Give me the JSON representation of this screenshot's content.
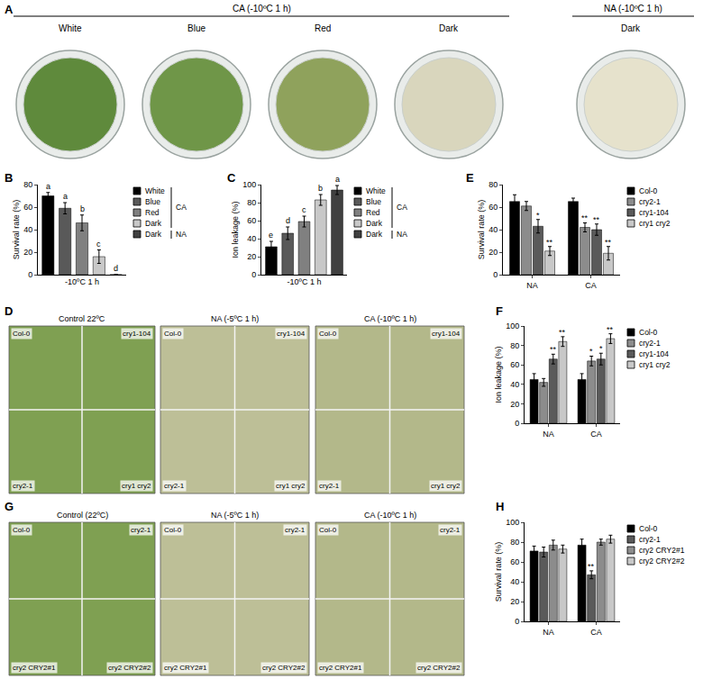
{
  "panels": {
    "A": {
      "label": "A",
      "headers": [
        {
          "text": "CA (-10ºC 1 h)",
          "plates": [
            "White",
            "Blue",
            "Red",
            "Dark"
          ]
        },
        {
          "text": "NA (-10ºC 1 h)",
          "plates": [
            "Dark"
          ]
        }
      ]
    },
    "D": {
      "label": "D",
      "conditions": [
        "Control 22ºC",
        "NA (-5ºC 1 h)",
        "CA (-10ºC 1 h)"
      ],
      "genotypes": [
        "Col-0",
        "cry1-104",
        "cry2-1",
        "cry1 cry2"
      ]
    },
    "G": {
      "label": "G",
      "conditions": [
        "Control (22ºC)",
        "NA (-5ºC 1 h)",
        "CA (-10ºC 1 h)"
      ],
      "genotypes": [
        "Col-0",
        "cry2-1",
        "cry2 CRY2#1",
        "cry2 CRY2#2"
      ]
    }
  },
  "chart_data": [
    {
      "panel": "B",
      "type": "bar",
      "xlabel": "-10ºC 1 h",
      "ylabel": "Survival rate (%)",
      "categories": [
        "White",
        "Blue",
        "Red",
        "Dark",
        "Dark"
      ],
      "values": [
        70,
        59,
        46,
        16,
        0
      ],
      "errors": [
        3,
        5,
        7,
        6,
        0
      ],
      "annotations": [
        "a",
        "a",
        "b",
        "c",
        "d"
      ],
      "colors": [
        "#000000",
        "#595959",
        "#808080",
        "#c8c8c8",
        "#404040"
      ],
      "legend_groups": [
        {
          "label": "CA",
          "count": 4
        },
        {
          "label": "NA",
          "count": 1
        }
      ],
      "ylim": [
        0,
        80
      ],
      "yticks": [
        0,
        20,
        40,
        60,
        80
      ],
      "grid": false,
      "tick_labels": "y",
      "legend": "right"
    },
    {
      "panel": "C",
      "type": "bar",
      "xlabel": "-10ºC 1 h",
      "ylabel": "Ion leakage (%)",
      "categories": [
        "White",
        "Blue",
        "Red",
        "Dark",
        "Dark"
      ],
      "values": [
        31,
        46,
        59,
        83,
        94
      ],
      "errors": [
        6,
        7,
        6,
        6,
        5
      ],
      "annotations": [
        "e",
        "d",
        "c",
        "b",
        "a"
      ],
      "colors": [
        "#000000",
        "#595959",
        "#808080",
        "#c8c8c8",
        "#404040"
      ],
      "legend_groups": [
        {
          "label": "CA",
          "count": 4
        },
        {
          "label": "NA",
          "count": 1
        }
      ],
      "ylim": [
        0,
        100
      ],
      "yticks": [
        0,
        20,
        40,
        60,
        80,
        100
      ],
      "grid": false,
      "tick_labels": "y",
      "legend": "right"
    },
    {
      "panel": "E",
      "type": "bar",
      "ylabel": "Survival rate (%)",
      "categories": [
        "NA",
        "CA"
      ],
      "series": [
        {
          "name": "Col-0",
          "color": "#000000",
          "values": [
            65,
            65
          ],
          "errors": [
            6,
            3
          ],
          "annotations": [
            null,
            null
          ]
        },
        {
          "name": "cry2-1",
          "color": "#8c8c8c",
          "values": [
            61,
            42
          ],
          "errors": [
            4,
            4
          ],
          "annotations": [
            null,
            "**"
          ]
        },
        {
          "name": "cry1-104",
          "color": "#5a5a5a",
          "values": [
            43,
            40
          ],
          "errors": [
            6,
            5
          ],
          "annotations": [
            "*",
            "**"
          ]
        },
        {
          "name": "cry1 cry2",
          "color": "#c8c8c8",
          "values": [
            21,
            19
          ],
          "errors": [
            4,
            6
          ],
          "annotations": [
            "**",
            "**"
          ]
        }
      ],
      "ylim": [
        0,
        80
      ],
      "yticks": [
        0,
        20,
        40,
        60,
        80
      ],
      "grid": false,
      "legend": "right"
    },
    {
      "panel": "F",
      "type": "bar",
      "ylabel": "Ion leakage (%)",
      "categories": [
        "NA",
        "CA"
      ],
      "series": [
        {
          "name": "Col-0",
          "color": "#000000",
          "values": [
            45,
            45
          ],
          "errors": [
            6,
            6
          ],
          "annotations": [
            null,
            null
          ]
        },
        {
          "name": "cry2-1",
          "color": "#8c8c8c",
          "values": [
            42,
            64
          ],
          "errors": [
            4,
            5
          ],
          "annotations": [
            null,
            "*"
          ]
        },
        {
          "name": "cry1-104",
          "color": "#5a5a5a",
          "values": [
            66,
            66
          ],
          "errors": [
            5,
            6
          ],
          "annotations": [
            "**",
            "*"
          ]
        },
        {
          "name": "cry1 cry2",
          "color": "#c8c8c8",
          "values": [
            84,
            87
          ],
          "errors": [
            5,
            5
          ],
          "annotations": [
            "**",
            "**"
          ]
        }
      ],
      "ylim": [
        0,
        100
      ],
      "yticks": [
        0,
        20,
        40,
        60,
        80,
        100
      ],
      "grid": false,
      "legend": "right"
    },
    {
      "panel": "H",
      "type": "bar",
      "ylabel": "Survival rate (%)",
      "categories": [
        "NA",
        "CA"
      ],
      "series": [
        {
          "name": "Col-0",
          "color": "#000000",
          "values": [
            71,
            77
          ],
          "errors": [
            5,
            6
          ],
          "annotations": [
            null,
            null
          ]
        },
        {
          "name": "cry2-1",
          "color": "#5a5a5a",
          "values": [
            70,
            47
          ],
          "errors": [
            5,
            4
          ],
          "annotations": [
            null,
            "**"
          ]
        },
        {
          "name": "cry2 CRY2#1",
          "color": "#8c8c8c",
          "values": [
            77,
            80
          ],
          "errors": [
            5,
            3
          ],
          "annotations": [
            null,
            null
          ]
        },
        {
          "name": "cry2 CRY2#2",
          "color": "#c8c8c8",
          "values": [
            73,
            83
          ],
          "errors": [
            4,
            4
          ],
          "annotations": [
            null,
            null
          ]
        }
      ],
      "ylim": [
        0,
        100
      ],
      "yticks": [
        0,
        20,
        40,
        60,
        80,
        100
      ],
      "grid": false,
      "legend": "right"
    }
  ]
}
